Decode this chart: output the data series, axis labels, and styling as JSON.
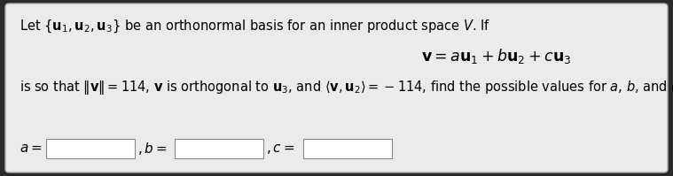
{
  "outer_bg_color": "#2a2a2a",
  "box_facecolor": "#ebebeb",
  "box_edge_color": "#aaaaaa",
  "text_color": "#000000",
  "line1": "Let $\\{\\mathbf{u}_1, \\mathbf{u}_2, \\mathbf{u}_3\\}$ be an orthonormal basis for an inner product space $V$. If",
  "equation": "$\\mathbf{v} = a\\mathbf{u}_1 + b\\mathbf{u}_2 + c\\mathbf{u}_3$",
  "line2": "is so that $\\|\\mathbf{v}\\| = 114$, $\\mathbf{v}$ is orthogonal to $\\mathbf{u}_3$, and $\\langle \\mathbf{v}, \\mathbf{u}_2 \\rangle = -114$, find the possible values for $a$, $b$, and $c$.",
  "label_a": "$a = $",
  "label_b": "$, b = $",
  "label_c": "$, c = $",
  "font_size_main": 10.5,
  "font_size_eq": 12.5,
  "font_size_labels": 11
}
